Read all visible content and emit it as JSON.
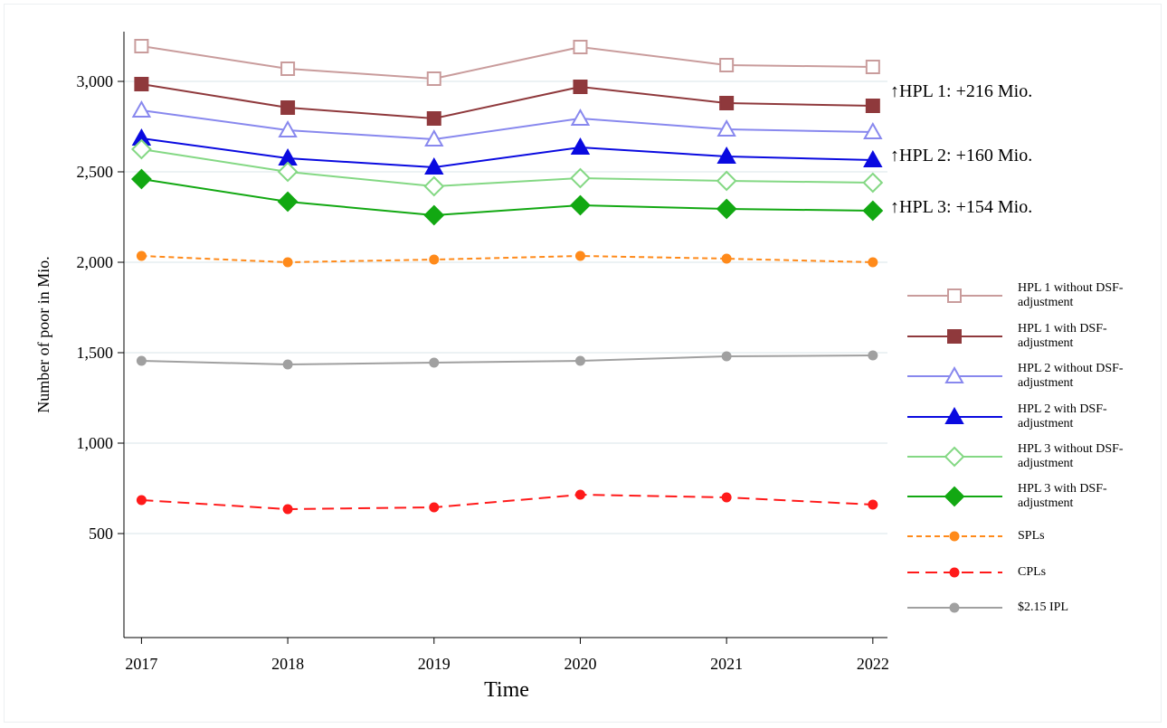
{
  "chart_data": {
    "type": "line",
    "x_label": "Time",
    "y_label": "Number of poor in Mio.",
    "x": [
      2017,
      2018,
      2019,
      2020,
      2021,
      2022
    ],
    "xlim": [
      2016.88,
      2022.1
    ],
    "xticks": [
      2017,
      2018,
      2019,
      2020,
      2021,
      2022
    ],
    "ylim": [
      -75,
      3275
    ],
    "yticks": [
      500,
      {
        "value": 1000,
        "label": "1,000"
      },
      {
        "value": 1500,
        "label": "1,500"
      },
      {
        "value": 2000,
        "label": "2,000"
      },
      {
        "value": 2500,
        "label": "2,500"
      },
      {
        "value": 3000,
        "label": "3,000"
      }
    ],
    "grid": true,
    "legend": "right",
    "series": [
      {
        "name": "HPL 1 without DSF-adjustment",
        "color": "#c99c9c",
        "marker": "square",
        "filled": false,
        "dash": "solid",
        "values": [
          3195,
          3070,
          3015,
          3190,
          3090,
          3080
        ]
      },
      {
        "name": "HPL 1 with DSF-adjustment",
        "color": "#8f393c",
        "marker": "square",
        "filled": true,
        "dash": "solid",
        "values": [
          2985,
          2855,
          2795,
          2970,
          2880,
          2865
        ]
      },
      {
        "name": "HPL 2 without DSF-adjustment",
        "color": "#8888ee",
        "marker": "triangle",
        "filled": false,
        "dash": "solid",
        "values": [
          2840,
          2730,
          2680,
          2795,
          2735,
          2720
        ]
      },
      {
        "name": "HPL 2 with DSF-adjustment",
        "color": "#0a0ae0",
        "marker": "triangle",
        "filled": true,
        "dash": "solid",
        "values": [
          2685,
          2575,
          2525,
          2635,
          2585,
          2565
        ]
      },
      {
        "name": "HPL 3 without DSF-adjustment",
        "color": "#84d884",
        "marker": "diamond",
        "filled": false,
        "dash": "solid",
        "values": [
          2625,
          2500,
          2420,
          2465,
          2450,
          2440
        ]
      },
      {
        "name": "HPL 3 with DSF-adjustment",
        "color": "#12a812",
        "marker": "diamond",
        "filled": true,
        "dash": "solid",
        "values": [
          2460,
          2335,
          2260,
          2315,
          2295,
          2285
        ]
      },
      {
        "name": "SPLs",
        "color": "#ff8a1a",
        "marker": "circle",
        "filled": true,
        "dash": "short",
        "values": [
          2035,
          2000,
          2015,
          2035,
          2020,
          2000
        ]
      },
      {
        "name": "CPLs",
        "color": "#ff1a1a",
        "marker": "circle",
        "filled": true,
        "dash": "long",
        "values": [
          685,
          635,
          645,
          715,
          700,
          660
        ]
      },
      {
        "name": "$2.15 IPL",
        "color": "#a0a0a0",
        "marker": "circle",
        "filled": true,
        "dash": "solid",
        "values": [
          1455,
          1435,
          1445,
          1455,
          1480,
          1485
        ]
      }
    ],
    "annotations": [
      "↑HPL 1: +216 Mio.",
      "↑HPL 2: +160 Mio.",
      "↑HPL 3: +154 Mio."
    ]
  }
}
